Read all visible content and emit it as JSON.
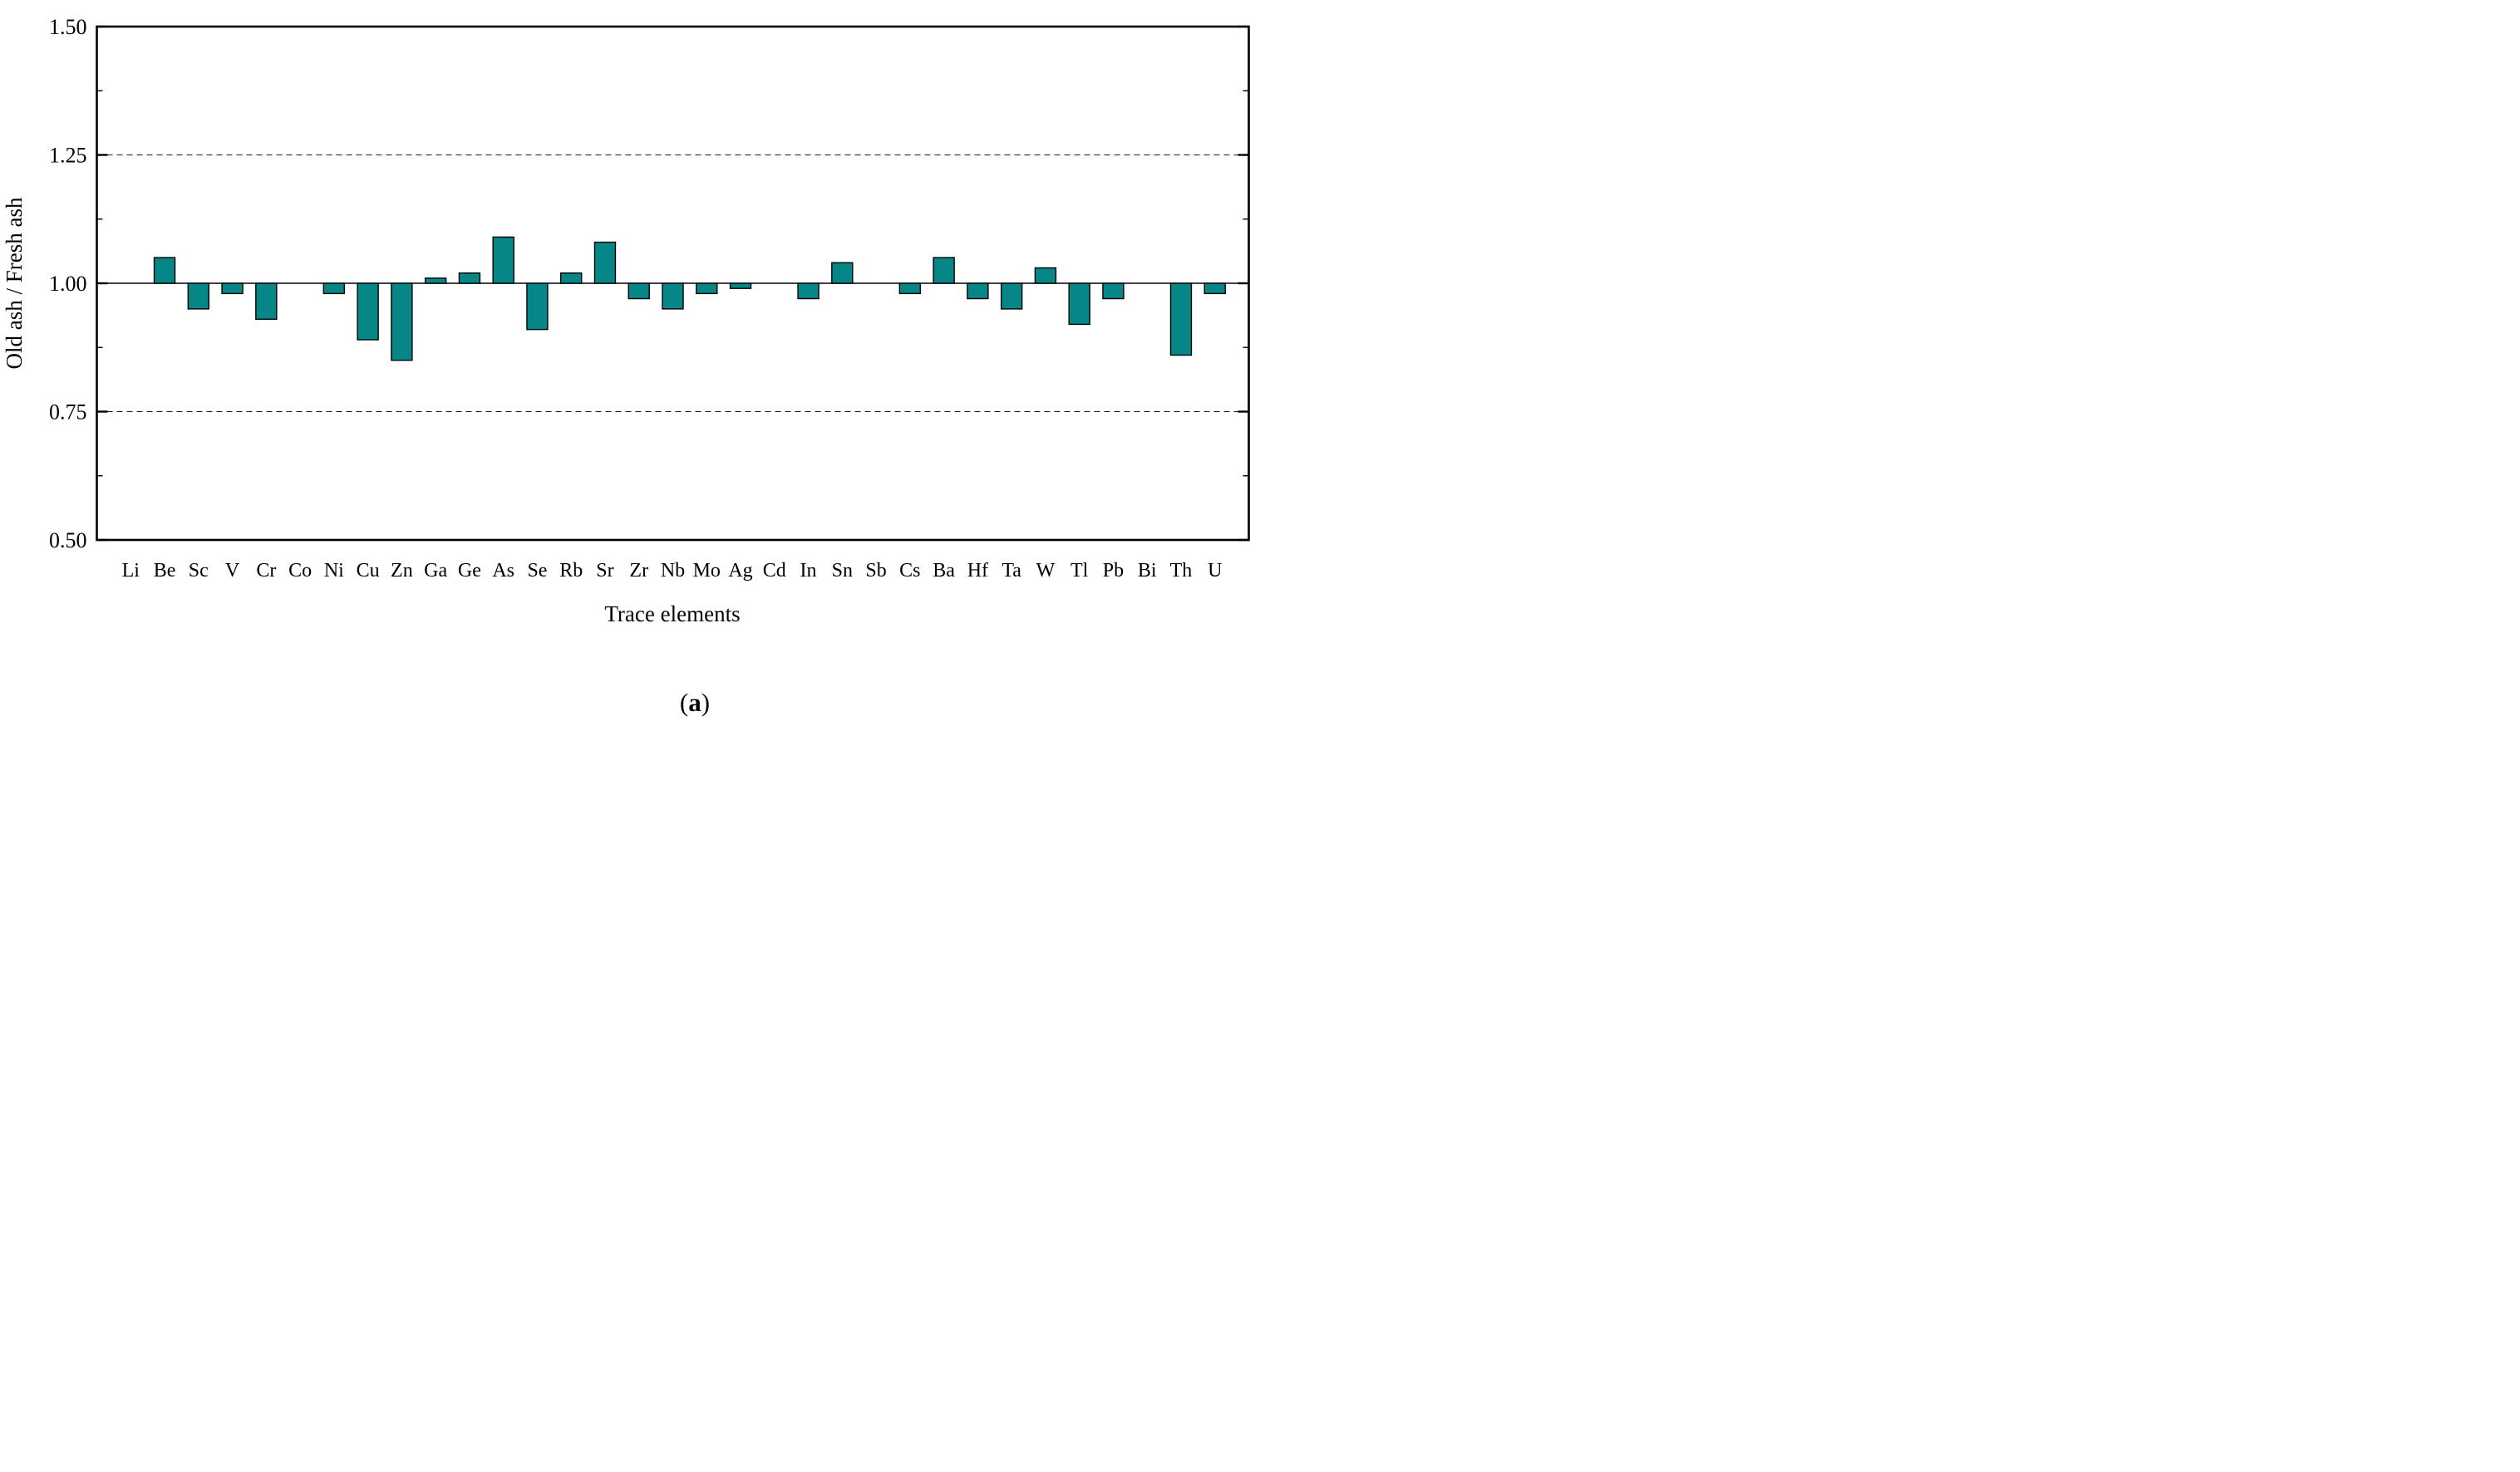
{
  "figure": {
    "caption": {
      "open": "(",
      "letter": "a",
      "close": ")"
    }
  },
  "chart_data": {
    "type": "bar",
    "title": "",
    "xlabel": "Trace elements",
    "ylabel": "Old ash / Fresh ash",
    "categories": [
      "Li",
      "Be",
      "Sc",
      "V",
      "Cr",
      "Co",
      "Ni",
      "Cu",
      "Zn",
      "Ga",
      "Ge",
      "As",
      "Se",
      "Rb",
      "Sr",
      "Zr",
      "Nb",
      "Mo",
      "Ag",
      "Cd",
      "In",
      "Sn",
      "Sb",
      "Cs",
      "Ba",
      "Hf",
      "Ta",
      "W",
      "Tl",
      "Pb",
      "Bi",
      "Th",
      "U"
    ],
    "values": [
      1.0,
      1.05,
      0.95,
      0.98,
      0.93,
      1.0,
      0.98,
      0.89,
      0.85,
      1.01,
      1.02,
      1.09,
      0.91,
      1.02,
      1.08,
      0.97,
      0.95,
      0.98,
      0.99,
      1.0,
      0.97,
      1.04,
      1.0,
      0.98,
      1.05,
      0.97,
      0.95,
      1.03,
      0.92,
      0.97,
      1.0,
      0.86,
      0.98
    ],
    "baseline": 1.0,
    "ylim": [
      0.5,
      1.5
    ],
    "ytick_labels": [
      "0.50",
      "0.75",
      "1.00",
      "1.25",
      "1.50"
    ],
    "yticks_major": [
      0.5,
      0.75,
      1.0,
      1.25,
      1.5
    ],
    "yticks_minor": [
      0.625,
      0.875,
      1.125,
      1.375
    ],
    "dashed_gridlines": [
      0.75,
      1.25
    ],
    "solid_reference_line": 1.0,
    "grid": "horizontal-dashed",
    "legend": "none",
    "colors": {
      "bar_fill": "#068686",
      "bar_edge": "#000000",
      "axis": "#000000",
      "grid": "#1a1a1a",
      "background": "#ffffff"
    }
  }
}
